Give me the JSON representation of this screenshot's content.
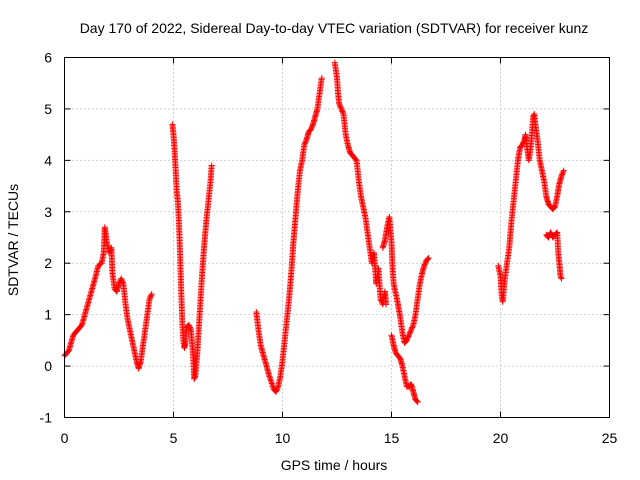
{
  "chart_data": {
    "type": "scatter",
    "title": "Day 170 of 2022, Sidereal Day-to-day VTEC variation (SDTVAR) for receiver kunz",
    "xlabel": "GPS time / hours",
    "ylabel": "SDTVAR / TECUs",
    "xlim": [
      0,
      25
    ],
    "ylim": [
      -1,
      6
    ],
    "xticks": [
      0,
      5,
      10,
      15,
      20,
      25
    ],
    "yticks": [
      -1,
      0,
      1,
      2,
      3,
      4,
      5,
      6
    ],
    "xtick_labels": [
      "0",
      "5",
      "10",
      "15",
      "20",
      "25"
    ],
    "ytick_labels": [
      "-1",
      "0",
      "1",
      "2",
      "3",
      "4",
      "5",
      "6"
    ],
    "grid": true,
    "marker": "+",
    "color": "#ff0000",
    "series": [
      {
        "name": "SDTVAR",
        "segments": [
          [
            [
              0.0,
              0.2
            ],
            [
              0.2,
              0.3
            ],
            [
              0.4,
              0.6
            ],
            [
              0.6,
              0.7
            ],
            [
              0.8,
              0.8
            ],
            [
              1.0,
              1.1
            ],
            [
              1.2,
              1.4
            ],
            [
              1.4,
              1.7
            ],
            [
              1.55,
              1.95
            ],
            [
              1.7,
              2.0
            ],
            [
              1.8,
              2.2
            ],
            [
              1.85,
              2.7
            ],
            [
              1.95,
              2.4
            ],
            [
              2.05,
              2.2
            ],
            [
              2.15,
              2.3
            ],
            [
              2.2,
              1.8
            ],
            [
              2.3,
              1.5
            ],
            [
              2.4,
              1.45
            ],
            [
              2.5,
              1.6
            ],
            [
              2.6,
              1.7
            ],
            [
              2.7,
              1.6
            ],
            [
              2.8,
              1.2
            ],
            [
              2.9,
              0.9
            ],
            [
              3.0,
              0.7
            ],
            [
              3.1,
              0.5
            ],
            [
              3.2,
              0.3
            ],
            [
              3.3,
              0.1
            ],
            [
              3.4,
              -0.05
            ],
            [
              3.5,
              0.1
            ],
            [
              3.6,
              0.4
            ],
            [
              3.7,
              0.7
            ],
            [
              3.8,
              1.0
            ],
            [
              3.9,
              1.3
            ],
            [
              4.0,
              1.4
            ]
          ],
          [
            [
              4.95,
              4.7
            ],
            [
              5.0,
              4.5
            ],
            [
              5.05,
              4.2
            ],
            [
              5.1,
              3.8
            ],
            [
              5.15,
              3.4
            ],
            [
              5.2,
              3.2
            ],
            [
              5.25,
              2.8
            ],
            [
              5.3,
              2.2
            ],
            [
              5.35,
              1.5
            ],
            [
              5.4,
              0.9
            ],
            [
              5.45,
              0.5
            ],
            [
              5.5,
              0.35
            ],
            [
              5.55,
              0.45
            ],
            [
              5.6,
              0.75
            ],
            [
              5.7,
              0.8
            ],
            [
              5.8,
              0.7
            ],
            [
              5.9,
              0.2
            ],
            [
              5.95,
              -0.25
            ],
            [
              6.0,
              -0.2
            ],
            [
              6.1,
              0.3
            ],
            [
              6.2,
              1.0
            ],
            [
              6.3,
              1.7
            ],
            [
              6.4,
              2.3
            ],
            [
              6.5,
              2.8
            ],
            [
              6.6,
              3.2
            ],
            [
              6.7,
              3.6
            ],
            [
              6.75,
              3.9
            ]
          ],
          [
            [
              8.8,
              1.05
            ],
            [
              8.9,
              0.7
            ],
            [
              9.0,
              0.4
            ],
            [
              9.2,
              0.1
            ],
            [
              9.4,
              -0.2
            ],
            [
              9.6,
              -0.45
            ],
            [
              9.7,
              -0.5
            ],
            [
              9.8,
              -0.4
            ],
            [
              9.9,
              -0.2
            ],
            [
              10.0,
              0.1
            ],
            [
              10.1,
              0.5
            ],
            [
              10.2,
              0.9
            ],
            [
              10.3,
              1.3
            ],
            [
              10.4,
              1.8
            ],
            [
              10.5,
              2.4
            ],
            [
              10.6,
              2.9
            ],
            [
              10.7,
              3.4
            ],
            [
              10.8,
              3.8
            ],
            [
              10.9,
              4.0
            ],
            [
              11.0,
              4.3
            ],
            [
              11.1,
              4.4
            ],
            [
              11.2,
              4.55
            ],
            [
              11.3,
              4.6
            ],
            [
              11.4,
              4.7
            ],
            [
              11.5,
              4.85
            ],
            [
              11.6,
              5.0
            ],
            [
              11.7,
              5.3
            ],
            [
              11.8,
              5.6
            ]
          ],
          [
            [
              12.4,
              5.9
            ],
            [
              12.5,
              5.6
            ],
            [
              12.55,
              5.3
            ],
            [
              12.6,
              5.1
            ],
            [
              12.7,
              5.0
            ],
            [
              12.8,
              4.9
            ],
            [
              12.9,
              4.5
            ],
            [
              13.0,
              4.3
            ],
            [
              13.1,
              4.15
            ],
            [
              13.2,
              4.1
            ],
            [
              13.4,
              4.0
            ],
            [
              13.5,
              3.6
            ],
            [
              13.6,
              3.3
            ],
            [
              13.7,
              3.1
            ],
            [
              13.8,
              2.9
            ],
            [
              13.9,
              2.6
            ],
            [
              14.0,
              2.3
            ],
            [
              14.1,
              2.0
            ],
            [
              14.2,
              2.2
            ],
            [
              14.3,
              1.6
            ],
            [
              14.4,
              1.9
            ],
            [
              14.5,
              1.3
            ],
            [
              14.6,
              1.2
            ],
            [
              14.7,
              1.45
            ],
            [
              14.75,
              1.2
            ]
          ],
          [
            [
              14.6,
              2.3
            ],
            [
              14.7,
              2.45
            ],
            [
              14.8,
              2.7
            ],
            [
              14.9,
              2.9
            ],
            [
              15.0,
              2.4
            ],
            [
              15.05,
              1.9
            ],
            [
              15.1,
              1.6
            ],
            [
              15.2,
              1.4
            ],
            [
              15.3,
              1.2
            ],
            [
              15.4,
              0.95
            ],
            [
              15.5,
              0.65
            ],
            [
              15.6,
              0.45
            ],
            [
              15.7,
              0.5
            ],
            [
              15.8,
              0.6
            ],
            [
              15.9,
              0.7
            ],
            [
              16.0,
              0.8
            ],
            [
              16.1,
              1.0
            ],
            [
              16.2,
              1.3
            ],
            [
              16.3,
              1.6
            ],
            [
              16.4,
              1.8
            ],
            [
              16.5,
              1.95
            ],
            [
              16.6,
              2.05
            ],
            [
              16.7,
              2.1
            ]
          ],
          [
            [
              15.0,
              0.6
            ],
            [
              15.1,
              0.4
            ],
            [
              15.2,
              0.25
            ],
            [
              15.4,
              0.15
            ],
            [
              15.5,
              0.0
            ],
            [
              15.6,
              -0.2
            ],
            [
              15.7,
              -0.4
            ],
            [
              15.8,
              -0.4
            ],
            [
              15.9,
              -0.35
            ],
            [
              16.0,
              -0.5
            ],
            [
              16.1,
              -0.65
            ],
            [
              16.2,
              -0.7
            ]
          ],
          [
            [
              19.9,
              1.95
            ],
            [
              20.0,
              1.75
            ],
            [
              20.05,
              1.4
            ],
            [
              20.1,
              1.25
            ],
            [
              20.2,
              1.7
            ],
            [
              20.3,
              2.0
            ],
            [
              20.4,
              2.3
            ],
            [
              20.5,
              2.8
            ],
            [
              20.6,
              3.2
            ],
            [
              20.7,
              3.6
            ],
            [
              20.8,
              4.0
            ],
            [
              20.9,
              4.25
            ],
            [
              21.0,
              4.3
            ],
            [
              21.1,
              4.4
            ],
            [
              21.15,
              4.5
            ],
            [
              21.2,
              4.3
            ],
            [
              21.3,
              4.0
            ],
            [
              21.4,
              4.3
            ],
            [
              21.5,
              4.85
            ],
            [
              21.55,
              4.9
            ],
            [
              21.6,
              4.7
            ],
            [
              21.7,
              4.4
            ],
            [
              21.8,
              4.0
            ],
            [
              21.9,
              3.8
            ],
            [
              22.0,
              3.6
            ],
            [
              22.1,
              3.3
            ],
            [
              22.2,
              3.15
            ],
            [
              22.3,
              3.1
            ],
            [
              22.4,
              3.05
            ],
            [
              22.5,
              3.1
            ],
            [
              22.6,
              3.3
            ],
            [
              22.7,
              3.55
            ],
            [
              22.8,
              3.7
            ],
            [
              22.9,
              3.8
            ]
          ],
          [
            [
              22.1,
              2.55
            ],
            [
              22.2,
              2.5
            ],
            [
              22.3,
              2.6
            ],
            [
              22.4,
              2.5
            ],
            [
              22.5,
              2.55
            ],
            [
              22.6,
              2.6
            ],
            [
              22.65,
              2.2
            ],
            [
              22.7,
              2.0
            ],
            [
              22.75,
              1.75
            ],
            [
              22.8,
              1.7
            ]
          ]
        ]
      }
    ]
  }
}
